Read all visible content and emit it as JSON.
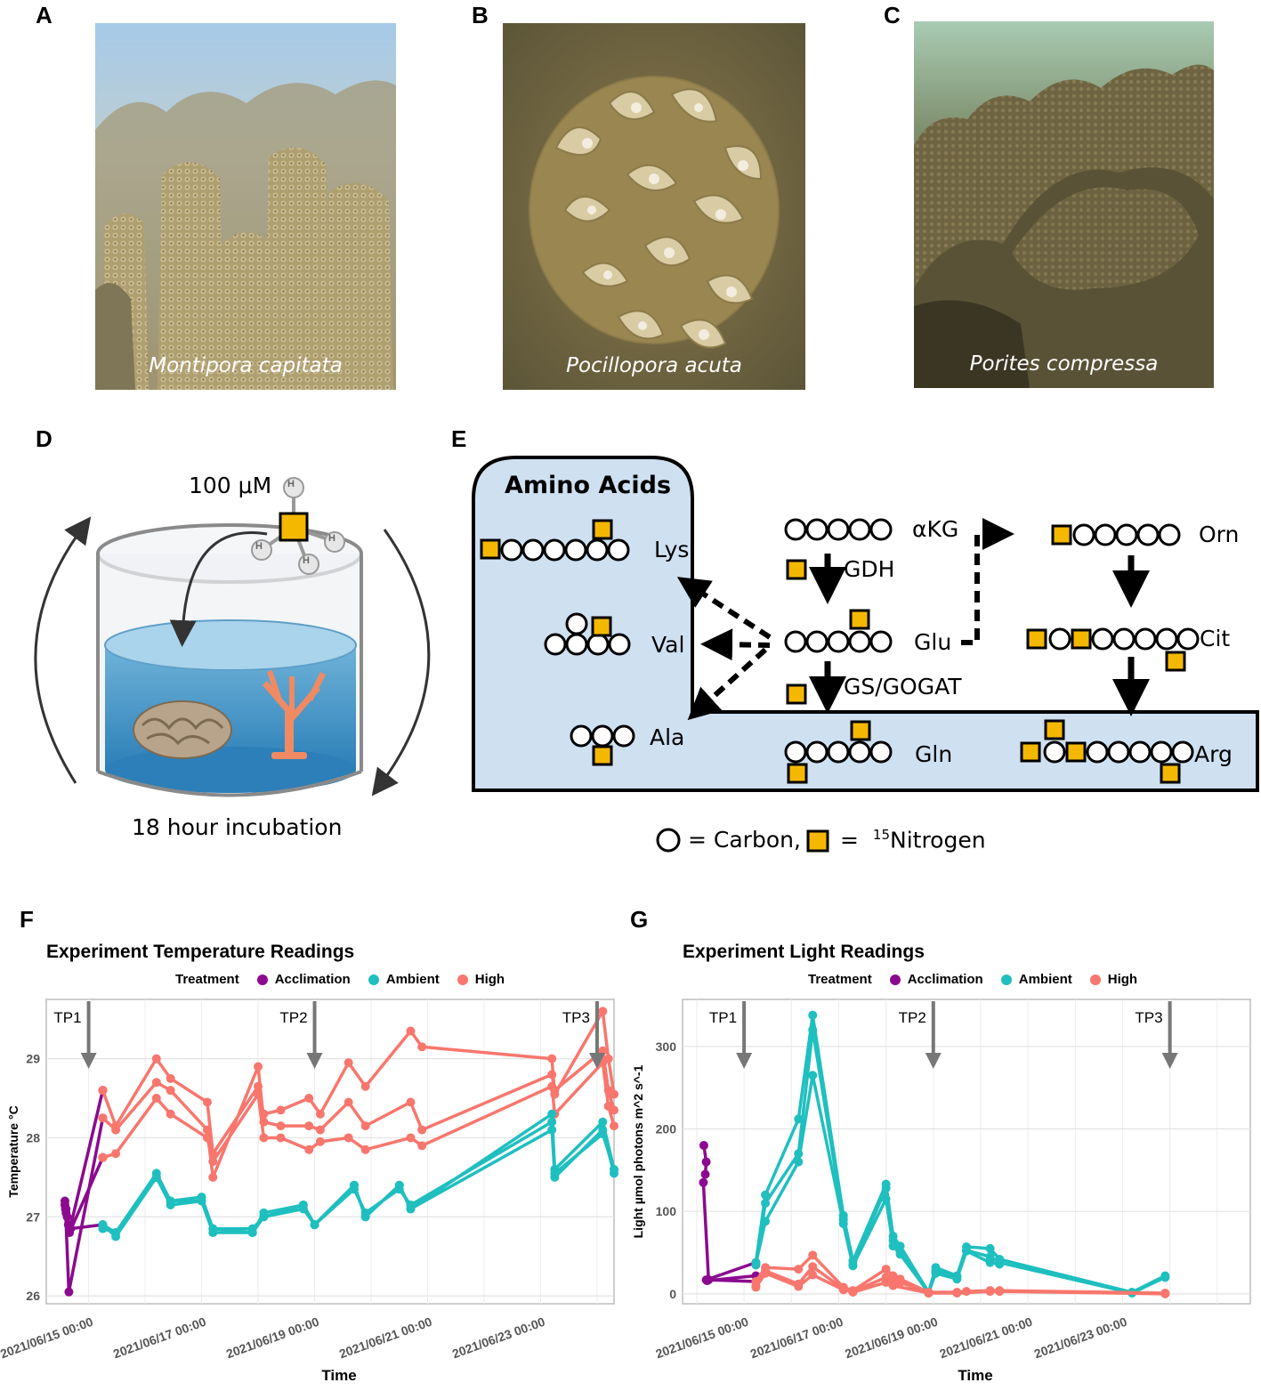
{
  "panels": {
    "A": "A",
    "B": "B",
    "C": "C",
    "D": "D",
    "E": "E",
    "F": "F",
    "G": "G"
  },
  "photos": {
    "a_caption": "Montipora capitata",
    "b_caption": "Pocillopora acuta",
    "c_caption": "Porites compressa"
  },
  "panel_d": {
    "concentration": "100 μM",
    "atom_label": "H",
    "incubation": "18 hour incubation"
  },
  "panel_e": {
    "box_title": "Amino Acids",
    "molecules": {
      "lys": "Lys",
      "val": "Val",
      "ala": "Ala",
      "akg": "αKG",
      "glu": "Glu",
      "gln": "Gln",
      "orn": "Orn",
      "cit": "Cit",
      "arg": "Arg"
    },
    "enzymes": {
      "gdh": "GDH",
      "gs": "GS/GOGAT"
    },
    "legend_carbon": "= Carbon,",
    "legend_eq": "=",
    "legend_sup": "15",
    "legend_nitrogen": "Nitrogen"
  },
  "colors": {
    "acclimation": "#8B0A8F",
    "ambient": "#1FBFBF",
    "high": "#F8766D",
    "nitrogen": "#F5B800",
    "box_fill": "#CFE0F1"
  },
  "legend_common": {
    "title": "Treatment",
    "items": [
      "Acclimation",
      "Ambient",
      "High"
    ]
  },
  "chart_data": [
    {
      "type": "line",
      "title": "Experiment Temperature Readings",
      "xlabel": "Time",
      "ylabel": "Temperature °C",
      "ylim": [
        25.9,
        29.75
      ],
      "yticks": [
        26,
        27,
        28,
        29
      ],
      "xticks": [
        "2021/06/15 00:00",
        "2021/06/17 00:00",
        "2021/06/19 00:00",
        "2021/06/21 00:00",
        "2021/06/23 00:00"
      ],
      "xrange": [
        -0.75,
        9.3
      ],
      "grid": true,
      "legend_position": "top",
      "annotations": [
        {
          "label": "TP1",
          "x": 0.0
        },
        {
          "label": "TP2",
          "x": 4.0
        },
        {
          "label": "TP3",
          "x": 9.0
        }
      ],
      "series": [
        {
          "name": "Acclimation",
          "points": [
            [
              -0.42,
              27.2
            ],
            [
              -0.4,
              27.1
            ],
            [
              -0.36,
              26.9
            ],
            [
              -0.32,
              26.85
            ],
            [
              0.25,
              26.9
            ]
          ]
        },
        {
          "name": "Acclimation",
          "points": [
            [
              -0.42,
              27.15
            ],
            [
              -0.38,
              27.0
            ],
            [
              -0.34,
              26.8
            ],
            [
              0.25,
              27.75
            ]
          ]
        },
        {
          "name": "Acclimation",
          "points": [
            [
              -0.41,
              27.1
            ],
            [
              -0.35,
              26.05
            ],
            [
              0.25,
              28.25
            ]
          ]
        },
        {
          "name": "Acclimation",
          "points": [
            [
              -0.4,
              27.05
            ],
            [
              -0.33,
              26.85
            ],
            [
              0.25,
              28.6
            ]
          ]
        },
        {
          "name": "High",
          "points": [
            [
              0.25,
              28.6
            ],
            [
              0.48,
              28.15
            ],
            [
              1.2,
              29.0
            ],
            [
              1.45,
              28.75
            ],
            [
              2.1,
              28.45
            ],
            [
              2.2,
              27.8
            ],
            [
              3.0,
              28.65
            ],
            [
              3.1,
              28.3
            ],
            [
              3.4,
              28.35
            ],
            [
              3.9,
              28.5
            ],
            [
              4.1,
              28.3
            ],
            [
              4.6,
              28.95
            ],
            [
              4.9,
              28.65
            ],
            [
              5.7,
              29.35
            ],
            [
              5.9,
              29.15
            ],
            [
              8.2,
              29.0
            ],
            [
              8.25,
              28.55
            ],
            [
              9.1,
              29.6
            ],
            [
              9.2,
              29.0
            ],
            [
              9.3,
              28.55
            ]
          ]
        },
        {
          "name": "High",
          "points": [
            [
              0.25,
              28.25
            ],
            [
              0.48,
              28.1
            ],
            [
              1.2,
              28.7
            ],
            [
              1.45,
              28.6
            ],
            [
              2.1,
              28.1
            ],
            [
              2.2,
              27.5
            ],
            [
              3.0,
              28.9
            ],
            [
              3.1,
              28.2
            ],
            [
              3.4,
              28.15
            ],
            [
              3.9,
              28.15
            ],
            [
              4.1,
              28.1
            ],
            [
              4.6,
              28.45
            ],
            [
              4.9,
              28.15
            ],
            [
              5.7,
              28.45
            ],
            [
              5.9,
              28.1
            ],
            [
              8.2,
              28.8
            ],
            [
              8.25,
              28.6
            ],
            [
              9.1,
              29.1
            ],
            [
              9.2,
              28.6
            ],
            [
              9.3,
              28.35
            ]
          ]
        },
        {
          "name": "High",
          "points": [
            [
              0.25,
              27.75
            ],
            [
              0.48,
              27.8
            ],
            [
              1.2,
              28.5
            ],
            [
              1.45,
              28.3
            ],
            [
              2.1,
              28.0
            ],
            [
              2.2,
              27.7
            ],
            [
              3.0,
              28.55
            ],
            [
              3.1,
              28.0
            ],
            [
              3.4,
              28.0
            ],
            [
              3.9,
              27.85
            ],
            [
              4.1,
              27.95
            ],
            [
              4.6,
              28.0
            ],
            [
              4.9,
              27.85
            ],
            [
              5.7,
              28.0
            ],
            [
              5.9,
              27.9
            ],
            [
              8.2,
              28.65
            ],
            [
              8.25,
              28.3
            ],
            [
              9.1,
              28.95
            ],
            [
              9.2,
              28.4
            ],
            [
              9.3,
              28.15
            ]
          ]
        },
        {
          "name": "Ambient",
          "points": [
            [
              0.25,
              26.9
            ],
            [
              0.48,
              26.8
            ],
            [
              1.2,
              27.55
            ],
            [
              1.45,
              27.2
            ],
            [
              2.0,
              27.25
            ],
            [
              2.2,
              26.85
            ],
            [
              2.9,
              26.8
            ],
            [
              3.1,
              27.0
            ],
            [
              3.8,
              27.15
            ],
            [
              4.0,
              26.9
            ],
            [
              4.7,
              27.4
            ],
            [
              4.9,
              27.0
            ],
            [
              5.5,
              27.4
            ],
            [
              5.7,
              27.1
            ],
            [
              8.2,
              28.3
            ],
            [
              8.25,
              27.6
            ],
            [
              9.1,
              28.2
            ],
            [
              9.3,
              27.6
            ]
          ]
        },
        {
          "name": "Ambient",
          "points": [
            [
              0.25,
              26.85
            ],
            [
              0.48,
              26.8
            ],
            [
              1.2,
              27.5
            ],
            [
              1.45,
              27.15
            ],
            [
              2.0,
              27.2
            ],
            [
              2.2,
              26.8
            ],
            [
              2.9,
              26.8
            ],
            [
              3.1,
              27.05
            ],
            [
              3.8,
              27.15
            ],
            [
              4.0,
              26.9
            ],
            [
              4.7,
              27.35
            ],
            [
              4.9,
              27.05
            ],
            [
              5.5,
              27.35
            ],
            [
              5.7,
              27.15
            ],
            [
              8.2,
              28.2
            ],
            [
              8.25,
              27.5
            ],
            [
              9.1,
              28.1
            ],
            [
              9.3,
              27.55
            ]
          ]
        },
        {
          "name": "Ambient",
          "points": [
            [
              0.25,
              26.9
            ],
            [
              0.48,
              26.75
            ],
            [
              1.2,
              27.5
            ],
            [
              1.45,
              27.2
            ],
            [
              2.0,
              27.2
            ],
            [
              2.2,
              26.85
            ],
            [
              2.9,
              26.85
            ],
            [
              3.1,
              27.0
            ],
            [
              3.8,
              27.1
            ],
            [
              4.0,
              26.9
            ],
            [
              4.7,
              27.4
            ],
            [
              4.9,
              27.0
            ],
            [
              5.5,
              27.4
            ],
            [
              5.7,
              27.1
            ],
            [
              8.2,
              28.1
            ],
            [
              8.25,
              27.55
            ],
            [
              9.1,
              28.05
            ],
            [
              9.3,
              27.6
            ]
          ]
        }
      ]
    },
    {
      "type": "line",
      "title": "Experiment Light Readings",
      "xlabel": "Time",
      "ylabel": "Light µmol photons m^2 s^-1",
      "ylim": [
        -12,
        357
      ],
      "yticks": [
        0,
        100,
        200,
        300
      ],
      "xticks": [
        "2021/06/15 00:00",
        "2021/06/17 00:00",
        "2021/06/19 00:00",
        "2021/06/21 00:00",
        "2021/06/23 00:00"
      ],
      "xrange": [
        -1.3,
        10.7
      ],
      "grid": true,
      "legend_position": "top",
      "annotations": [
        {
          "label": "TP1",
          "x": 0.0
        },
        {
          "label": "TP2",
          "x": 4.0
        },
        {
          "label": "TP3",
          "x": 9.0
        }
      ],
      "series": [
        {
          "name": "Acclimation",
          "points": [
            [
              -0.85,
              180
            ],
            [
              -0.8,
              160
            ],
            [
              -0.82,
              145
            ],
            [
              -0.86,
              135
            ],
            [
              -0.75,
              17
            ],
            [
              0.25,
              15
            ]
          ]
        },
        {
          "name": "Acclimation",
          "points": [
            [
              -0.8,
              17
            ],
            [
              0.25,
              38
            ]
          ]
        },
        {
          "name": "Acclimation",
          "points": [
            [
              -0.78,
              16
            ],
            [
              0.25,
              22
            ]
          ]
        },
        {
          "name": "Ambient",
          "points": [
            [
              0.25,
              38
            ],
            [
              0.45,
              120
            ],
            [
              1.15,
              212
            ],
            [
              1.45,
              338
            ],
            [
              2.1,
              95
            ],
            [
              2.3,
              40
            ],
            [
              3.0,
              133
            ],
            [
              3.15,
              70
            ],
            [
              3.3,
              58
            ],
            [
              3.9,
              2
            ],
            [
              4.05,
              32
            ],
            [
              4.5,
              22
            ],
            [
              4.7,
              57
            ],
            [
              5.2,
              55
            ],
            [
              5.4,
              42
            ],
            [
              8.2,
              2
            ],
            [
              8.9,
              22
            ]
          ]
        },
        {
          "name": "Ambient",
          "points": [
            [
              0.25,
              35
            ],
            [
              0.45,
              110
            ],
            [
              1.15,
              170
            ],
            [
              1.45,
              320
            ],
            [
              2.1,
              90
            ],
            [
              2.3,
              36
            ],
            [
              3.0,
              128
            ],
            [
              3.15,
              65
            ],
            [
              3.3,
              50
            ],
            [
              3.9,
              1
            ],
            [
              4.05,
              28
            ],
            [
              4.5,
              20
            ],
            [
              4.7,
              53
            ],
            [
              5.2,
              45
            ],
            [
              5.4,
              38
            ],
            [
              8.2,
              1
            ],
            [
              8.9,
              20
            ]
          ]
        },
        {
          "name": "Ambient",
          "points": [
            [
              0.25,
              37
            ],
            [
              0.45,
              88
            ],
            [
              1.15,
              160
            ],
            [
              1.45,
              265
            ],
            [
              2.1,
              85
            ],
            [
              2.3,
              34
            ],
            [
              3.0,
              115
            ],
            [
              3.15,
              58
            ],
            [
              3.3,
              48
            ],
            [
              3.9,
              2
            ],
            [
              4.05,
              25
            ],
            [
              4.5,
              18
            ],
            [
              4.7,
              52
            ],
            [
              5.2,
              38
            ],
            [
              5.4,
              36
            ]
          ]
        },
        {
          "name": "High",
          "points": [
            [
              0.25,
              15
            ],
            [
              0.45,
              32
            ],
            [
              1.15,
              30
            ],
            [
              1.45,
              47
            ],
            [
              2.1,
              8
            ],
            [
              2.3,
              4
            ],
            [
              3.0,
              30
            ],
            [
              3.15,
              22
            ],
            [
              3.3,
              18
            ],
            [
              3.9,
              2
            ],
            [
              4.5,
              2
            ],
            [
              4.7,
              3
            ],
            [
              5.2,
              4
            ],
            [
              5.4,
              4
            ],
            [
              8.9,
              1
            ]
          ]
        },
        {
          "name": "High",
          "points": [
            [
              0.25,
              10
            ],
            [
              0.45,
              28
            ],
            [
              1.15,
              12
            ],
            [
              1.45,
              33
            ],
            [
              2.1,
              6
            ],
            [
              2.3,
              3
            ],
            [
              3.0,
              20
            ],
            [
              3.15,
              16
            ],
            [
              3.3,
              14
            ],
            [
              3.9,
              1
            ],
            [
              4.5,
              1
            ],
            [
              5.2,
              3
            ],
            [
              5.4,
              3
            ],
            [
              8.9,
              0
            ]
          ]
        },
        {
          "name": "High",
          "points": [
            [
              0.25,
              8
            ],
            [
              0.45,
              25
            ],
            [
              1.15,
              9
            ],
            [
              1.45,
              23
            ],
            [
              2.1,
              5
            ],
            [
              2.3,
              2
            ],
            [
              3.0,
              14
            ],
            [
              3.15,
              10
            ],
            [
              3.9,
              1
            ]
          ]
        }
      ]
    }
  ]
}
